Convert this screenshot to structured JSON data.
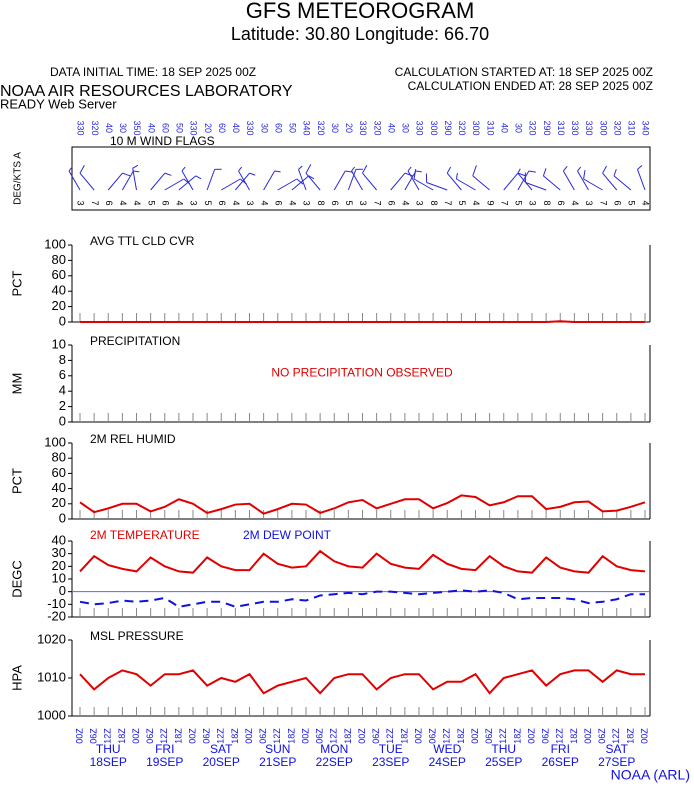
{
  "header": {
    "title": "GFS METEOROGRAM",
    "subtitle": "Latitude: 30.80 Longitude:  66.70",
    "init_time": "DATA INITIAL TIME: 18 SEP 2025 00Z",
    "calc_started": "CALCULATION STARTED AT: 18 SEP 2025 00Z",
    "calc_ended": "CALCULATION ENDED AT: 28 SEP 2025 00Z",
    "lab": "NOAA AIR RESOURCES LABORATORY",
    "server": "READY Web Server"
  },
  "time_axis": {
    "hours": [
      "00Z",
      "06Z",
      "12Z",
      "18Z",
      "00Z",
      "06Z",
      "12Z",
      "18Z",
      "00Z",
      "06Z",
      "12Z",
      "18Z",
      "00Z",
      "06Z",
      "12Z",
      "18Z",
      "00Z",
      "06Z",
      "12Z",
      "18Z",
      "00Z",
      "06Z",
      "12Z",
      "18Z",
      "00Z",
      "06Z",
      "12Z",
      "18Z",
      "00Z",
      "06Z",
      "12Z",
      "18Z",
      "00Z",
      "06Z",
      "12Z",
      "18Z",
      "00Z",
      "06Z",
      "12Z",
      "18Z",
      "00Z"
    ],
    "days": [
      {
        "weekday": "THU",
        "date": "18SEP"
      },
      {
        "weekday": "FRI",
        "date": "19SEP"
      },
      {
        "weekday": "SAT",
        "date": "20SEP"
      },
      {
        "weekday": "SUN",
        "date": "21SEP"
      },
      {
        "weekday": "MON",
        "date": "22SEP"
      },
      {
        "weekday": "TUE",
        "date": "23SEP"
      },
      {
        "weekday": "WED",
        "date": "24SEP"
      },
      {
        "weekday": "THU",
        "date": "25SEP"
      },
      {
        "weekday": "FRI",
        "date": "26SEP"
      },
      {
        "weekday": "SAT",
        "date": "27SEP"
      }
    ]
  },
  "footer": "NOAA (ARL)",
  "chart_data": [
    {
      "type": "wind",
      "title": "10 M  WIND FLAGS",
      "ylabel": "DEG/KTS  A",
      "color": "#2a2ad8",
      "directions": [
        330,
        320,
        40,
        30,
        350,
        40,
        60,
        50,
        330,
        20,
        60,
        40,
        330,
        30,
        60,
        50,
        340,
        320,
        30,
        20,
        330,
        320,
        40,
        30,
        330,
        300,
        290,
        320,
        300,
        310,
        40,
        30,
        320,
        290,
        310,
        330,
        330,
        300,
        320,
        310,
        340
      ],
      "speeds": [
        3,
        7,
        6,
        4,
        4,
        5,
        6,
        4,
        3,
        5,
        6,
        4,
        3,
        4,
        6,
        4,
        3,
        8,
        6,
        5,
        3,
        7,
        6,
        4,
        3,
        8,
        7,
        5,
        4,
        9,
        7,
        5,
        3,
        8,
        6,
        4,
        3,
        7,
        6,
        5,
        4
      ]
    },
    {
      "type": "line",
      "title": "AVG TTL CLD CVR",
      "ylabel": "PCT",
      "ylim": [
        0,
        100
      ],
      "yticks": [
        0,
        20,
        40,
        60,
        80,
        100
      ],
      "series": [
        {
          "color": "#e00000",
          "values": [
            0,
            0,
            0,
            0,
            0,
            0,
            0,
            0,
            0,
            0,
            0,
            0,
            0,
            0,
            0,
            0,
            0,
            0,
            0,
            0,
            0,
            0,
            0,
            0,
            0,
            0,
            0,
            0,
            0,
            0,
            0,
            0,
            0,
            0,
            1,
            0,
            0,
            0,
            0,
            0,
            0
          ]
        }
      ]
    },
    {
      "type": "line",
      "title": "PRECIPITATION",
      "ylabel": "MM",
      "ylim": [
        0,
        10
      ],
      "yticks": [
        0,
        2,
        4,
        6,
        8,
        10
      ],
      "note": "NO PRECIPITATION OBSERVED",
      "series": []
    },
    {
      "type": "line",
      "title": "2M REL HUMID",
      "ylabel": "PCT",
      "ylim": [
        0,
        100
      ],
      "yticks": [
        0,
        20,
        40,
        60,
        80,
        100
      ],
      "series": [
        {
          "color": "#e00000",
          "values": [
            22,
            9,
            14,
            20,
            20,
            10,
            16,
            26,
            20,
            8,
            13,
            19,
            20,
            7,
            13,
            20,
            19,
            8,
            14,
            22,
            25,
            14,
            20,
            26,
            26,
            14,
            21,
            31,
            29,
            18,
            22,
            30,
            30,
            13,
            16,
            22,
            23,
            10,
            11,
            16,
            22
          ]
        }
      ]
    },
    {
      "type": "line",
      "title": "",
      "ylabel": "DEGC",
      "ylim": [
        -20,
        40
      ],
      "yticks": [
        -20,
        -10,
        0,
        10,
        20,
        30,
        40
      ],
      "zero_line": true,
      "series": [
        {
          "name": "2M TEMPERATURE",
          "color": "#e00000",
          "values": [
            16,
            28,
            21,
            18,
            16,
            27,
            20,
            16,
            15,
            27,
            20,
            17,
            17,
            30,
            22,
            19,
            20,
            32,
            24,
            20,
            19,
            30,
            22,
            19,
            18,
            29,
            22,
            18,
            17,
            28,
            20,
            16,
            15,
            27,
            19,
            16,
            15,
            28,
            20,
            17,
            16
          ]
        },
        {
          "name": "2M   DEW POINT",
          "color": "#1010e0",
          "dashed": true,
          "values": [
            -8,
            -10,
            -9,
            -7,
            -8,
            -7,
            -5,
            -12,
            -10,
            -8,
            -8,
            -12,
            -10,
            -8,
            -8,
            -6,
            -7,
            -3,
            -2,
            -1,
            -2,
            0,
            0,
            -1,
            -2,
            -1,
            0,
            1,
            0,
            1,
            -1,
            -6,
            -5,
            -5,
            -5,
            -6,
            -9,
            -8,
            -6,
            -2,
            -2
          ]
        }
      ]
    },
    {
      "type": "line",
      "title": "MSL PRESSURE",
      "ylabel": "HPA",
      "ylim": [
        1000,
        1020
      ],
      "yticks": [
        1000,
        1010,
        1020
      ],
      "series": [
        {
          "color": "#e00000",
          "values": [
            1011,
            1007,
            1010,
            1012,
            1011,
            1008,
            1011,
            1011,
            1012,
            1008,
            1010,
            1009,
            1011,
            1006,
            1008,
            1009,
            1010,
            1006,
            1010,
            1011,
            1011,
            1007,
            1010,
            1011,
            1011,
            1007,
            1009,
            1009,
            1011,
            1006,
            1010,
            1011,
            1012,
            1008,
            1011,
            1012,
            1012,
            1009,
            1012,
            1011,
            1011
          ]
        }
      ]
    }
  ]
}
